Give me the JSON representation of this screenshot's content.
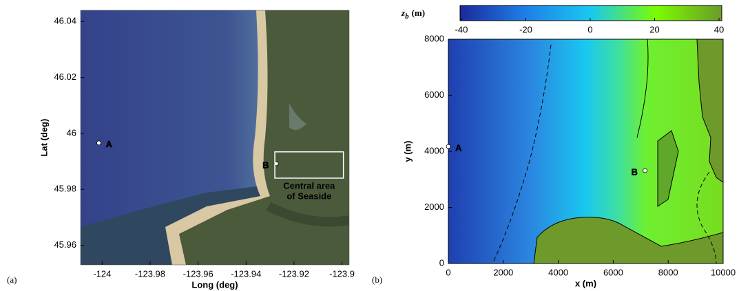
{
  "chart_data": [
    {
      "type": "map",
      "panel_label": "(a)",
      "x_label": "Long (deg)",
      "y_label": "Lat (deg)",
      "xlim": [
        -124.009,
        -123.897
      ],
      "ylim": [
        45.953,
        46.044
      ],
      "xticks": [
        -124,
        -123.98,
        -123.96,
        -123.94,
        -123.92,
        -123.9
      ],
      "yticks": [
        45.96,
        45.98,
        46,
        46.02,
        46.04
      ],
      "points": [
        {
          "label": "A",
          "x": -124.0014,
          "y": 45.9966
        },
        {
          "label": "B",
          "x": -123.9274,
          "y": 45.9892
        }
      ],
      "box": {
        "xlim": [
          -123.928,
          -123.8994
        ],
        "ylim": [
          45.984,
          45.9934
        ],
        "label": [
          "Central area",
          "of Seaside"
        ]
      }
    },
    {
      "type": "heatmap",
      "panel_label": "(b)",
      "x_label": "x (m)",
      "y_label": "y (m)",
      "xlim": [
        0,
        10000
      ],
      "ylim": [
        0,
        8000
      ],
      "xticks": [
        0,
        2000,
        4000,
        6000,
        8000,
        10000
      ],
      "yticks": [
        0,
        2000,
        4000,
        6000,
        8000
      ],
      "points": [
        {
          "label": "A",
          "x": 0,
          "y": 4172
        },
        {
          "label": "B",
          "x": 7157,
          "y": 3313
        }
      ],
      "colorbar": {
        "symbol": "z",
        "subscript": "b",
        "unit": "(m)",
        "lim": [
          -40,
          40
        ],
        "ticks": [
          -40,
          -20,
          0,
          20,
          40
        ],
        "colors": [
          "#1a2a9c",
          "#1e7fe8",
          "#19c8f0",
          "#7cfc00",
          "#6b9a2a"
        ]
      }
    }
  ]
}
